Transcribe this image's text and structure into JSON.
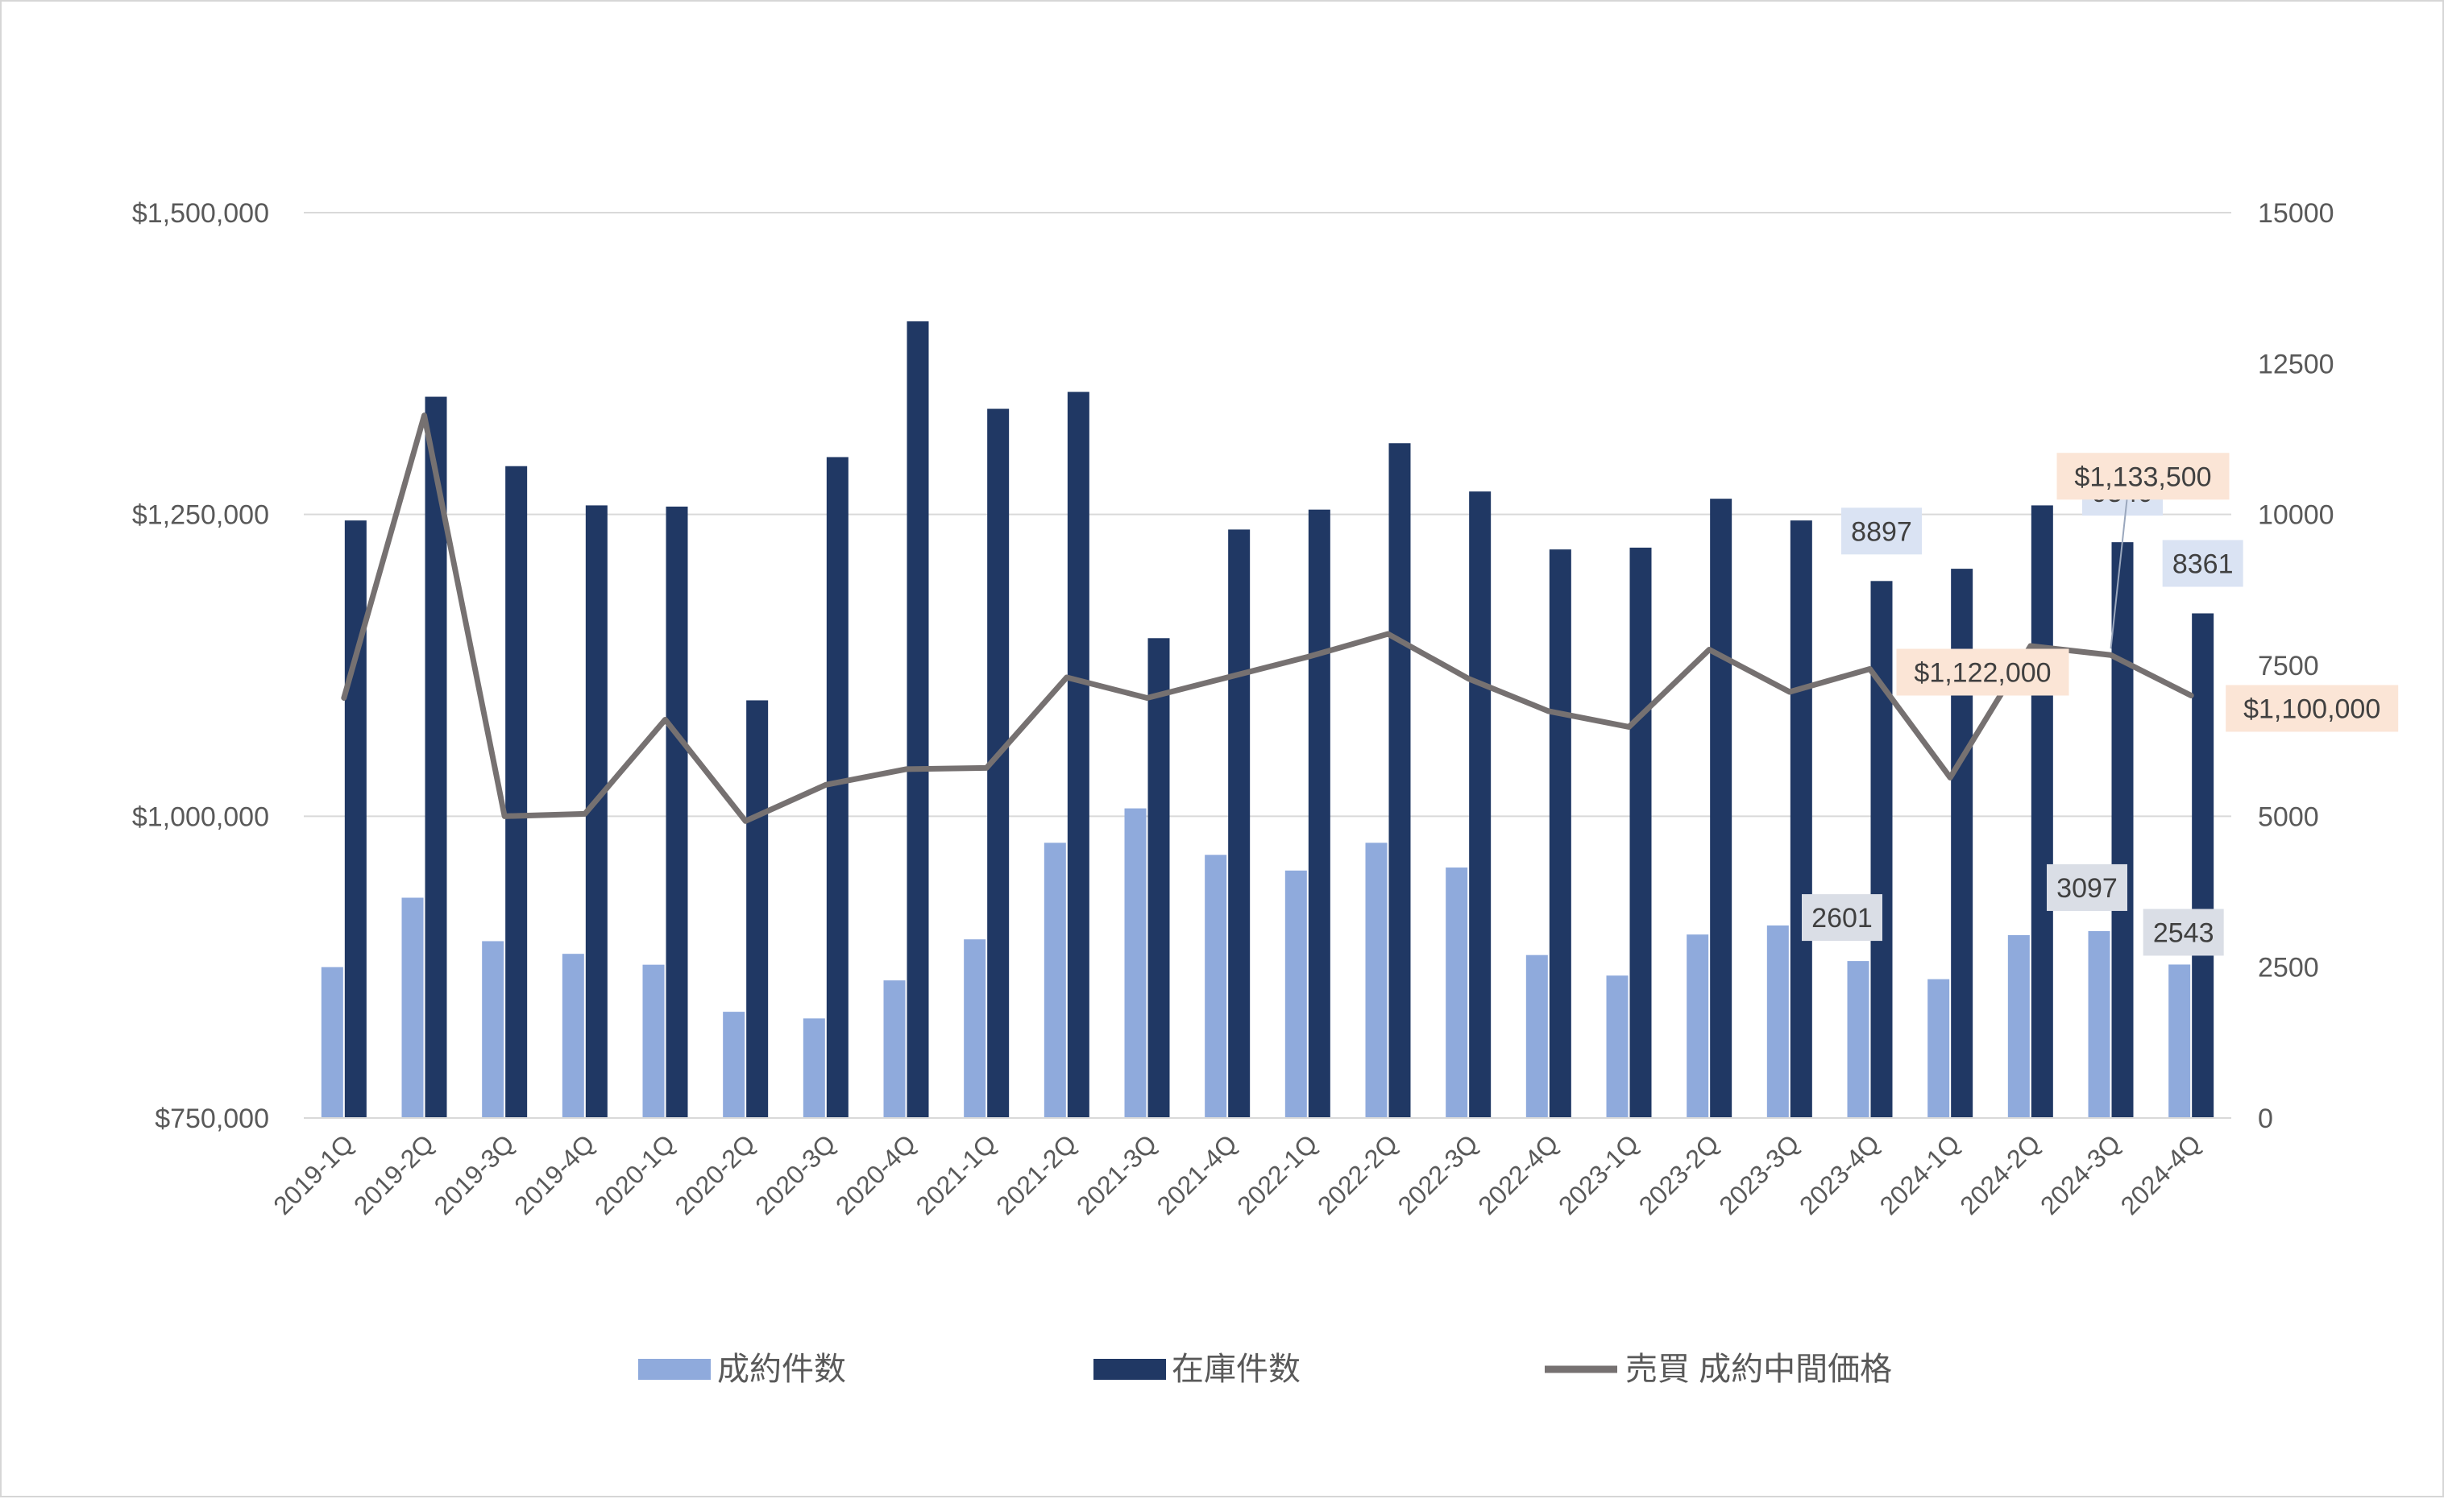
{
  "colors": {
    "sales_bar": "#8faadc",
    "inventory_bar": "#203864",
    "price_line": "#767171",
    "gridline": "#d9d9d9",
    "count_label_bg": "#dae3f3",
    "sales_label_bg": "#dadee6",
    "price_label_bg": "#fbe5d6"
  },
  "chart_data": {
    "type": "bar",
    "categories": [
      "2019-1Q",
      "2019-2Q",
      "2019-3Q",
      "2019-4Q",
      "2020-1Q",
      "2020-2Q",
      "2020-3Q",
      "2020-4Q",
      "2021-1Q",
      "2021-2Q",
      "2021-3Q",
      "2021-4Q",
      "2022-1Q",
      "2022-2Q",
      "2022-3Q",
      "2022-4Q",
      "2023-1Q",
      "2023-2Q",
      "2023-3Q",
      "2023-4Q",
      "2024-1Q",
      "2024-2Q",
      "2024-3Q",
      "2024-4Q"
    ],
    "series": [
      {
        "name": "成約件数",
        "type": "bar",
        "axis": "right",
        "values": [
          2500,
          3650,
          2930,
          2720,
          2540,
          1760,
          1650,
          2280,
          2960,
          4560,
          5130,
          4360,
          4100,
          4560,
          4150,
          2700,
          2360,
          3040,
          3190,
          2601,
          2300,
          3030,
          3097,
          2543
        ]
      },
      {
        "name": "在庫件数",
        "type": "bar",
        "axis": "right",
        "values": [
          9900,
          11950,
          10800,
          10150,
          10130,
          6920,
          10950,
          13200,
          11750,
          12030,
          7950,
          9750,
          10080,
          11180,
          10380,
          9420,
          9450,
          10260,
          9900,
          8897,
          9100,
          10150,
          9540,
          8361
        ]
      },
      {
        "name": "売買 成約中間価格",
        "type": "line",
        "axis": "left",
        "values": [
          1098000,
          1332000,
          1000000,
          1002000,
          1080000,
          996000,
          1026000,
          1039000,
          1040000,
          1115000,
          1098000,
          1115000,
          1132000,
          1151000,
          1114000,
          1087000,
          1074000,
          1138000,
          1103000,
          1122000,
          1032000,
          1141000,
          1133500,
          1100000
        ]
      }
    ],
    "y_left": {
      "min": 750000,
      "max": 1500000,
      "ticks": [
        "$750,000",
        "$1,000,000",
        "$1,250,000",
        "$1,500,000"
      ]
    },
    "y_right": {
      "min": 0,
      "max": 15000,
      "ticks": [
        "0",
        "2500",
        "5000",
        "7500",
        "10000",
        "12500",
        "15000"
      ]
    },
    "data_labels": [
      {
        "text": "8897",
        "series": 1,
        "index": 19,
        "style": "count"
      },
      {
        "text": "9540",
        "series": 1,
        "index": 22,
        "style": "count"
      },
      {
        "text": "8361",
        "series": 1,
        "index": 23,
        "style": "count"
      },
      {
        "text": "2601",
        "series": 0,
        "index": 19,
        "style": "sales"
      },
      {
        "text": "3097",
        "series": 0,
        "index": 22,
        "style": "sales"
      },
      {
        "text": "2543",
        "series": 0,
        "index": 23,
        "style": "sales"
      },
      {
        "text": "$1,122,000",
        "series": 2,
        "index": 19,
        "style": "price"
      },
      {
        "text": "$1,133,500",
        "series": 2,
        "index": 22,
        "style": "price"
      },
      {
        "text": "$1,100,000",
        "series": 2,
        "index": 23,
        "style": "price"
      }
    ],
    "grid": true,
    "legend_position": "bottom"
  }
}
